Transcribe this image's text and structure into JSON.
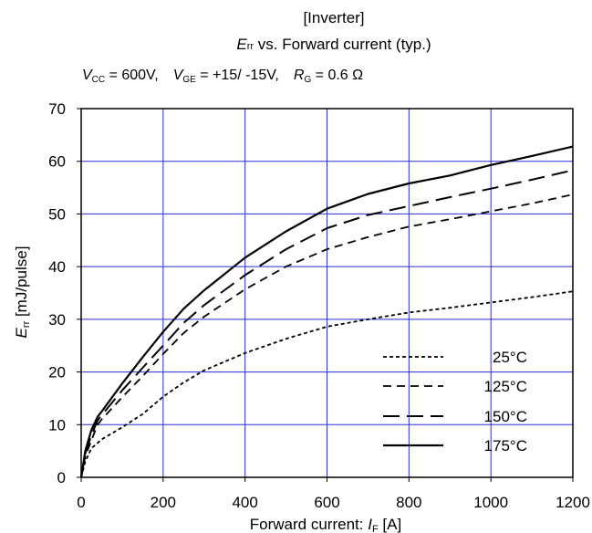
{
  "title": {
    "line1": "[Inverter]",
    "line2_main": "E",
    "line2_sub": "rr",
    "line2_rest": " vs. Forward current  (typ.)",
    "cond_vcc_main": "V",
    "cond_vcc_sub": "CC",
    "cond_vcc_val": " = 600V,",
    "cond_vge_main": "V",
    "cond_vge_sub": "GE",
    "cond_vge_val": " = +15/ -15V,",
    "cond_rg_main": "R",
    "cond_rg_sub": "G",
    "cond_rg_val": " =   0.6 Ω"
  },
  "colors": {
    "grid": "#2a2ad8",
    "curve": "#000000",
    "frame": "#000000"
  },
  "chart_data": {
    "type": "line",
    "xlabel": "Forward current: I_F [A]",
    "xlabel_parts": {
      "pre": "Forward current: ",
      "main": "I",
      "sub": "F",
      "post": " [A]"
    },
    "ylabel": "E_rr [mJ/pulse]",
    "ylabel_parts": {
      "main": "E",
      "sub": "rr",
      "post": " [mJ/pulse]"
    },
    "xlim": [
      0,
      1200
    ],
    "ylim": [
      0,
      70
    ],
    "xticks": [
      0,
      200,
      400,
      600,
      800,
      1000,
      1200
    ],
    "yticks": [
      0,
      10,
      20,
      30,
      40,
      50,
      60,
      70
    ],
    "grid": true,
    "legend_position": "bottom-right",
    "series": [
      {
        "name": "25°C",
        "dash": "short",
        "points": [
          [
            0,
            0
          ],
          [
            10,
            3
          ],
          [
            25,
            5.5
          ],
          [
            50,
            7.2
          ],
          [
            100,
            9.5
          ],
          [
            150,
            12
          ],
          [
            200,
            15.3
          ],
          [
            250,
            18
          ],
          [
            300,
            20.3
          ],
          [
            400,
            23.6
          ],
          [
            500,
            26.3
          ],
          [
            600,
            28.6
          ],
          [
            700,
            30
          ],
          [
            800,
            31.3
          ],
          [
            900,
            32.2
          ],
          [
            1000,
            33.2
          ],
          [
            1100,
            34.2
          ],
          [
            1200,
            35.3
          ]
        ]
      },
      {
        "name": "125°C",
        "dash": "medium",
        "points": [
          [
            0,
            0
          ],
          [
            10,
            4
          ],
          [
            25,
            7
          ],
          [
            40,
            10
          ],
          [
            50,
            11
          ],
          [
            100,
            15.2
          ],
          [
            150,
            19.2
          ],
          [
            200,
            23.4
          ],
          [
            250,
            27.4
          ],
          [
            300,
            30.5
          ],
          [
            400,
            35.7
          ],
          [
            500,
            40
          ],
          [
            600,
            43.3
          ],
          [
            700,
            45.6
          ],
          [
            800,
            47.6
          ],
          [
            900,
            49
          ],
          [
            1000,
            50.5
          ],
          [
            1100,
            52
          ],
          [
            1200,
            53.7
          ]
        ]
      },
      {
        "name": "150°C",
        "dash": "long",
        "points": [
          [
            0,
            0
          ],
          [
            10,
            4.5
          ],
          [
            25,
            8
          ],
          [
            40,
            10.8
          ],
          [
            50,
            11.8
          ],
          [
            100,
            16.5
          ],
          [
            150,
            20.8
          ],
          [
            200,
            25
          ],
          [
            250,
            29.3
          ],
          [
            300,
            32.7
          ],
          [
            400,
            38.4
          ],
          [
            500,
            43.3
          ],
          [
            600,
            47.3
          ],
          [
            700,
            49.8
          ],
          [
            800,
            51.5
          ],
          [
            900,
            53.2
          ],
          [
            1000,
            54.8
          ],
          [
            1100,
            56.5
          ],
          [
            1200,
            58.3
          ]
        ]
      },
      {
        "name": "175°C",
        "dash": "solid",
        "points": [
          [
            0,
            0
          ],
          [
            10,
            5
          ],
          [
            25,
            9
          ],
          [
            40,
            11.5
          ],
          [
            50,
            12.5
          ],
          [
            100,
            17.8
          ],
          [
            150,
            22.8
          ],
          [
            200,
            27.6
          ],
          [
            250,
            32
          ],
          [
            300,
            35.5
          ],
          [
            400,
            41.7
          ],
          [
            500,
            46.7
          ],
          [
            600,
            51
          ],
          [
            700,
            53.8
          ],
          [
            800,
            55.8
          ],
          [
            900,
            57.3
          ],
          [
            1000,
            59.3
          ],
          [
            1100,
            61
          ],
          [
            1200,
            62.8
          ]
        ]
      }
    ]
  }
}
